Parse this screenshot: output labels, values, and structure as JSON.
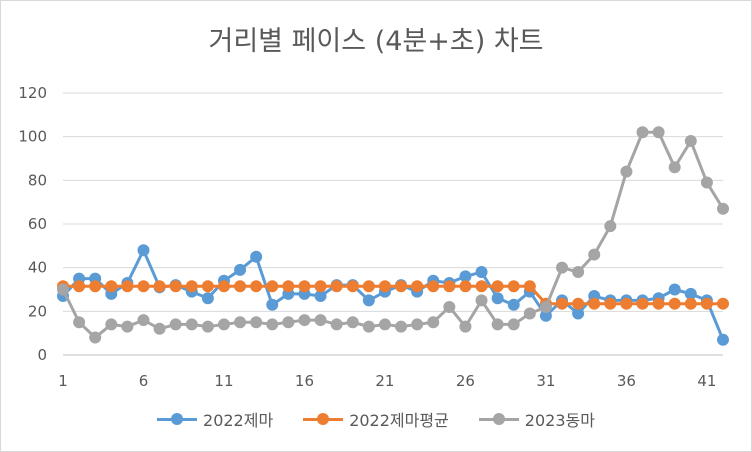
{
  "chart_data": {
    "type": "line",
    "title": "거리별 페이스 (4분+초) 차트",
    "x": [
      1,
      2,
      3,
      4,
      5,
      6,
      7,
      8,
      9,
      10,
      11,
      12,
      13,
      14,
      15,
      16,
      17,
      18,
      19,
      20,
      21,
      22,
      23,
      24,
      25,
      26,
      27,
      28,
      29,
      30,
      31,
      32,
      33,
      34,
      35,
      36,
      37,
      38,
      39,
      40,
      41,
      42
    ],
    "xticks": [
      1,
      6,
      11,
      16,
      21,
      26,
      31,
      36,
      41
    ],
    "xlim": [
      1,
      42
    ],
    "ylim": [
      0,
      120
    ],
    "yticks": [
      0,
      20,
      40,
      60,
      80,
      100,
      120
    ],
    "grid": true,
    "legend": "bottom",
    "series": [
      {
        "name": "2022제마",
        "color": "#5b9bd5",
        "values": [
          27,
          35,
          35,
          28,
          33,
          48,
          31,
          32,
          29,
          26,
          34,
          39,
          45,
          23,
          28,
          28,
          27,
          32,
          32,
          25,
          29,
          32,
          29,
          34,
          33,
          36,
          38,
          26,
          23,
          29,
          18,
          25,
          19,
          27,
          25,
          25,
          25,
          26,
          30,
          28,
          25,
          7
        ]
      },
      {
        "name": "2022제마평균",
        "color": "#ed7d31",
        "values": [
          31.5,
          31.5,
          31.5,
          31.5,
          31.5,
          31.5,
          31.5,
          31.5,
          31.5,
          31.5,
          31.5,
          31.5,
          31.5,
          31.5,
          31.5,
          31.5,
          31.5,
          31.5,
          31.5,
          31.5,
          31.5,
          31.5,
          31.5,
          31.5,
          31.5,
          31.5,
          31.5,
          31.5,
          31.5,
          31.5,
          23.5,
          23.5,
          23.5,
          23.5,
          23.5,
          23.5,
          23.5,
          23.5,
          23.5,
          23.5,
          23.5,
          23.5
        ]
      },
      {
        "name": "2023동마",
        "color": "#a5a5a5",
        "values": [
          30,
          15,
          8,
          14,
          13,
          16,
          12,
          14,
          14,
          13,
          14,
          15,
          15,
          14,
          15,
          16,
          16,
          14,
          15,
          13,
          14,
          13,
          14,
          15,
          22,
          13,
          25,
          14,
          14,
          19,
          22,
          40,
          38,
          46,
          59,
          84,
          102,
          102,
          86,
          98,
          79,
          67
        ]
      }
    ]
  }
}
